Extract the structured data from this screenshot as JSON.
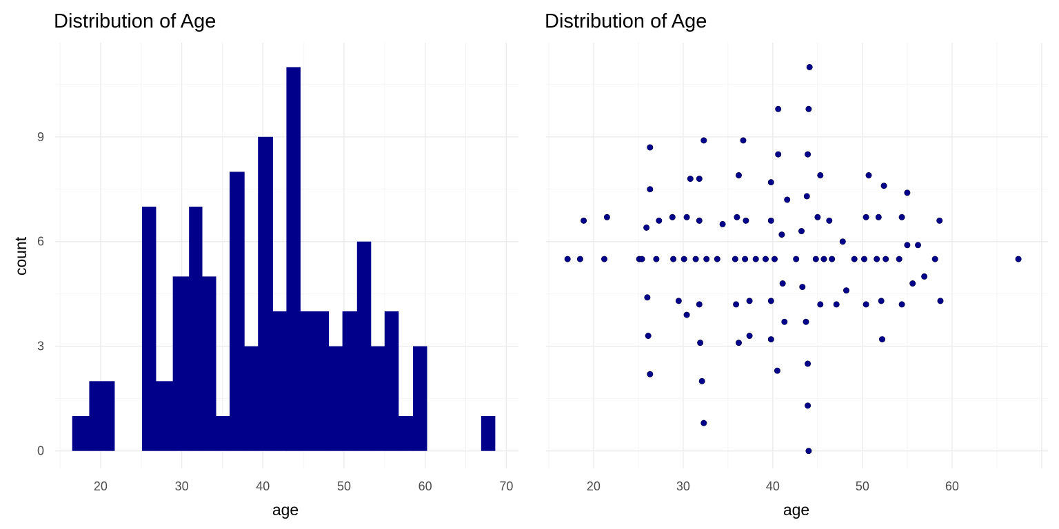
{
  "chart_data": [
    {
      "type": "bar",
      "subtype": "histogram",
      "title": "Distribution of Age",
      "xlabel": "age",
      "ylabel": "count",
      "bin_width": 2.08,
      "bins": [
        {
          "x0": 16.5,
          "x1": 18.6,
          "count": 1
        },
        {
          "x0": 18.6,
          "x1": 20.7,
          "count": 2
        },
        {
          "x0": 20.7,
          "x1": 21.7,
          "count": 2
        },
        {
          "x0": 25.1,
          "x1": 26.8,
          "count": 7
        },
        {
          "x0": 26.8,
          "x1": 28.9,
          "count": 2
        },
        {
          "x0": 28.9,
          "x1": 30.9,
          "count": 5
        },
        {
          "x0": 30.9,
          "x1": 32.5,
          "count": 7
        },
        {
          "x0": 32.5,
          "x1": 34.2,
          "count": 5
        },
        {
          "x0": 34.2,
          "x1": 35.9,
          "count": 1
        },
        {
          "x0": 35.9,
          "x1": 37.7,
          "count": 8
        },
        {
          "x0": 37.7,
          "x1": 39.4,
          "count": 3
        },
        {
          "x0": 39.4,
          "x1": 41.2,
          "count": 9
        },
        {
          "x0": 41.2,
          "x1": 42.9,
          "count": 4
        },
        {
          "x0": 42.9,
          "x1": 44.6,
          "count": 11
        },
        {
          "x0": 44.6,
          "x1": 48.1,
          "count": 4
        },
        {
          "x0": 48.1,
          "x1": 49.8,
          "count": 3
        },
        {
          "x0": 49.8,
          "x1": 51.6,
          "count": 4
        },
        {
          "x0": 51.6,
          "x1": 53.3,
          "count": 6
        },
        {
          "x0": 53.3,
          "x1": 55.0,
          "count": 3
        },
        {
          "x0": 55.0,
          "x1": 56.7,
          "count": 4
        },
        {
          "x0": 56.7,
          "x1": 58.5,
          "count": 1
        },
        {
          "x0": 58.5,
          "x1": 60.2,
          "count": 3
        },
        {
          "x0": 66.9,
          "x1": 68.6,
          "count": 1
        }
      ],
      "xlim": [
        14.4,
        71.5
      ],
      "ylim": [
        -0.5,
        11.7
      ],
      "x_ticks": [
        20,
        30,
        40,
        50,
        60,
        70
      ],
      "y_ticks": [
        0,
        3,
        6,
        9
      ],
      "color": "#00008B",
      "grid": true,
      "legend": "none"
    },
    {
      "type": "scatter",
      "title": "Distribution of Age",
      "xlabel": "age",
      "ylabel": "",
      "points": [
        {
          "x": 17.1,
          "y": 5.5
        },
        {
          "x": 18.5,
          "y": 5.5
        },
        {
          "x": 21.2,
          "y": 5.5
        },
        {
          "x": 18.9,
          "y": 6.6
        },
        {
          "x": 21.5,
          "y": 6.7
        },
        {
          "x": 25.1,
          "y": 5.5
        },
        {
          "x": 25.4,
          "y": 5.5
        },
        {
          "x": 27.0,
          "y": 5.5
        },
        {
          "x": 26.3,
          "y": 8.7
        },
        {
          "x": 26.3,
          "y": 7.5
        },
        {
          "x": 25.9,
          "y": 6.4
        },
        {
          "x": 27.3,
          "y": 6.6
        },
        {
          "x": 28.8,
          "y": 6.7
        },
        {
          "x": 26.0,
          "y": 4.4
        },
        {
          "x": 26.1,
          "y": 3.3
        },
        {
          "x": 26.3,
          "y": 2.2
        },
        {
          "x": 29.5,
          "y": 4.3
        },
        {
          "x": 28.9,
          "y": 5.5
        },
        {
          "x": 30.1,
          "y": 5.5
        },
        {
          "x": 31.4,
          "y": 5.5
        },
        {
          "x": 32.6,
          "y": 5.5
        },
        {
          "x": 33.8,
          "y": 5.5
        },
        {
          "x": 30.4,
          "y": 6.7
        },
        {
          "x": 30.8,
          "y": 7.8
        },
        {
          "x": 31.8,
          "y": 7.8
        },
        {
          "x": 31.8,
          "y": 6.6
        },
        {
          "x": 32.3,
          "y": 8.9
        },
        {
          "x": 31.8,
          "y": 4.2
        },
        {
          "x": 30.4,
          "y": 3.9
        },
        {
          "x": 31.9,
          "y": 3.1
        },
        {
          "x": 32.1,
          "y": 2.0
        },
        {
          "x": 32.3,
          "y": 0.8
        },
        {
          "x": 34.4,
          "y": 6.5
        },
        {
          "x": 35.8,
          "y": 5.5
        },
        {
          "x": 36.9,
          "y": 5.5
        },
        {
          "x": 38.1,
          "y": 5.5
        },
        {
          "x": 39.2,
          "y": 5.5
        },
        {
          "x": 40.2,
          "y": 5.5
        },
        {
          "x": 36.0,
          "y": 6.7
        },
        {
          "x": 37.0,
          "y": 6.6
        },
        {
          "x": 36.2,
          "y": 7.9
        },
        {
          "x": 36.7,
          "y": 8.9
        },
        {
          "x": 35.9,
          "y": 4.2
        },
        {
          "x": 37.4,
          "y": 4.3
        },
        {
          "x": 36.2,
          "y": 3.1
        },
        {
          "x": 37.4,
          "y": 3.3
        },
        {
          "x": 39.8,
          "y": 6.6
        },
        {
          "x": 39.8,
          "y": 7.7
        },
        {
          "x": 39.8,
          "y": 4.3
        },
        {
          "x": 39.8,
          "y": 3.2
        },
        {
          "x": 40.5,
          "y": 2.3
        },
        {
          "x": 40.6,
          "y": 8.5
        },
        {
          "x": 40.6,
          "y": 9.8
        },
        {
          "x": 41.0,
          "y": 6.2
        },
        {
          "x": 41.6,
          "y": 7.2
        },
        {
          "x": 41.1,
          "y": 4.8
        },
        {
          "x": 41.3,
          "y": 3.7
        },
        {
          "x": 42.6,
          "y": 5.5
        },
        {
          "x": 43.2,
          "y": 6.3
        },
        {
          "x": 43.3,
          "y": 4.7
        },
        {
          "x": 43.8,
          "y": 7.3
        },
        {
          "x": 43.9,
          "y": 8.5
        },
        {
          "x": 44.0,
          "y": 9.8
        },
        {
          "x": 44.1,
          "y": 11.0
        },
        {
          "x": 43.7,
          "y": 3.7
        },
        {
          "x": 43.9,
          "y": 2.5
        },
        {
          "x": 43.9,
          "y": 1.3
        },
        {
          "x": 44.0,
          "y": 0.0
        },
        {
          "x": 44.8,
          "y": 5.5
        },
        {
          "x": 45.7,
          "y": 5.5
        },
        {
          "x": 46.6,
          "y": 5.5
        },
        {
          "x": 45.0,
          "y": 6.7
        },
        {
          "x": 46.3,
          "y": 6.6
        },
        {
          "x": 45.3,
          "y": 7.9
        },
        {
          "x": 45.3,
          "y": 4.2
        },
        {
          "x": 47.1,
          "y": 4.2
        },
        {
          "x": 48.2,
          "y": 4.6
        },
        {
          "x": 47.8,
          "y": 6.0
        },
        {
          "x": 49.1,
          "y": 5.5
        },
        {
          "x": 50.2,
          "y": 5.5
        },
        {
          "x": 51.6,
          "y": 5.5
        },
        {
          "x": 52.6,
          "y": 5.5
        },
        {
          "x": 54.1,
          "y": 5.5
        },
        {
          "x": 50.4,
          "y": 6.7
        },
        {
          "x": 51.8,
          "y": 6.7
        },
        {
          "x": 50.7,
          "y": 7.9
        },
        {
          "x": 52.4,
          "y": 7.6
        },
        {
          "x": 50.4,
          "y": 4.2
        },
        {
          "x": 52.1,
          "y": 4.3
        },
        {
          "x": 52.2,
          "y": 3.2
        },
        {
          "x": 54.4,
          "y": 6.7
        },
        {
          "x": 55.0,
          "y": 7.4
        },
        {
          "x": 55.0,
          "y": 5.9
        },
        {
          "x": 56.2,
          "y": 5.9
        },
        {
          "x": 54.4,
          "y": 4.2
        },
        {
          "x": 55.6,
          "y": 4.8
        },
        {
          "x": 56.9,
          "y": 5.0
        },
        {
          "x": 58.1,
          "y": 5.5
        },
        {
          "x": 58.6,
          "y": 6.6
        },
        {
          "x": 58.7,
          "y": 4.3
        },
        {
          "x": 67.4,
          "y": 5.5
        }
      ],
      "xlim": [
        14.7,
        70.7
      ],
      "ylim": [
        -0.5,
        11.7
      ],
      "x_ticks": [
        20,
        30,
        40,
        50,
        60
      ],
      "y_ticks": [],
      "color": "#00008B",
      "grid": true,
      "legend": "none"
    }
  ]
}
